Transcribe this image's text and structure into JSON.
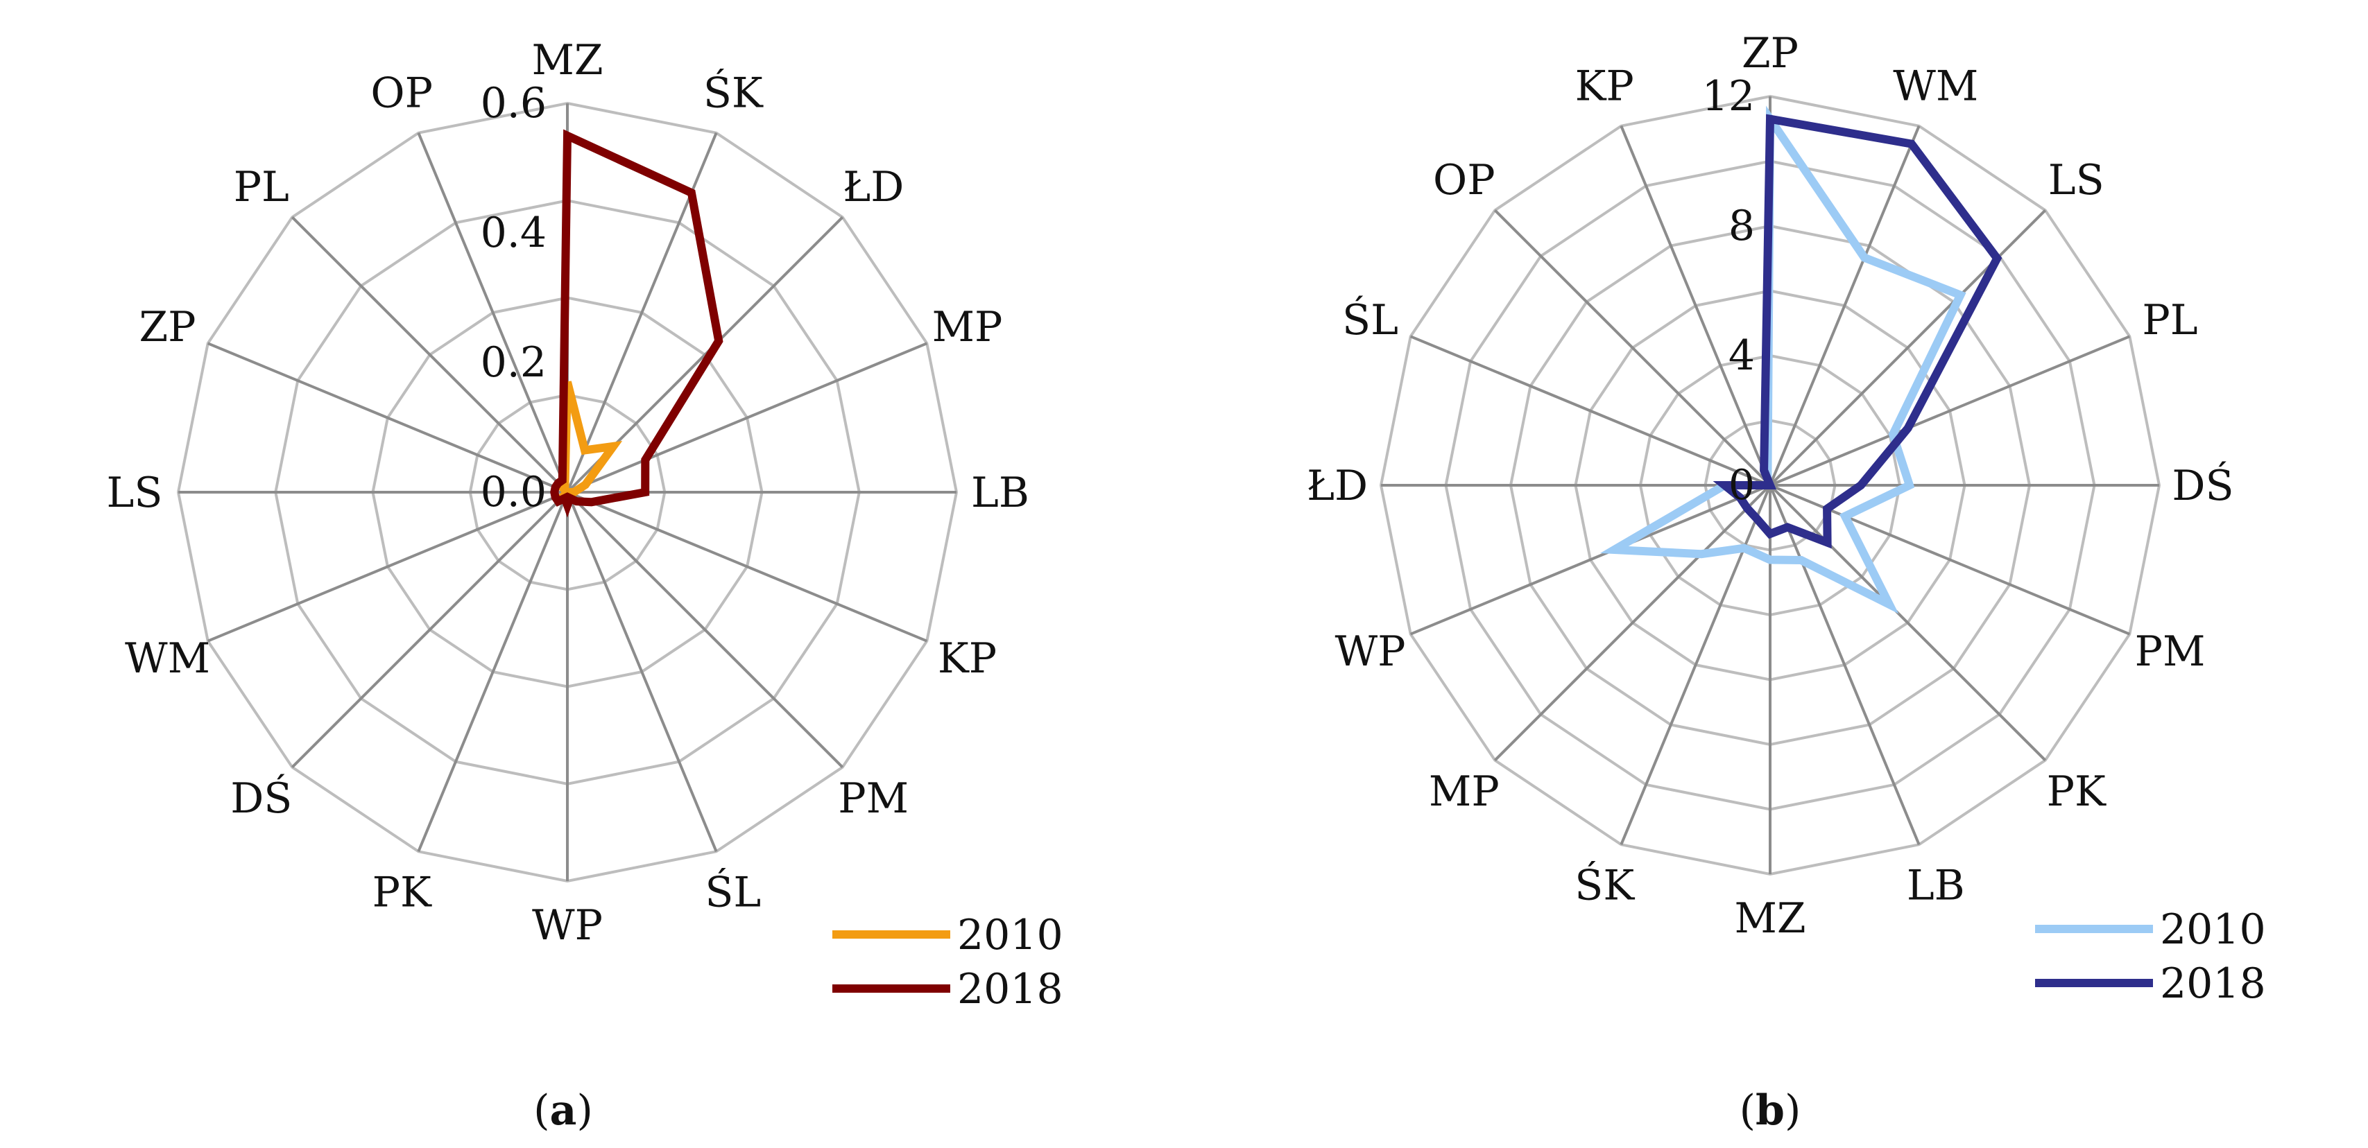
{
  "chart_data": [
    {
      "type": "radar",
      "panel_label": "a",
      "categories": [
        "MZ",
        "ŚK",
        "ŁD",
        "MP",
        "LB",
        "KP",
        "PM",
        "ŚL",
        "WP",
        "PK",
        "DŚ",
        "WM",
        "LS",
        "ZP",
        "PL",
        "OP"
      ],
      "ticks": [
        "0.0",
        "0.2",
        "0.4",
        "0.6"
      ],
      "rmax": 0.6,
      "rings": 4,
      "series": [
        {
          "name": "2010",
          "color": "#F39C12",
          "values": [
            0.17,
            0.07,
            0.1,
            0.03,
            0.01,
            0.0,
            0.0,
            0.0,
            0.01,
            0.01,
            0.01,
            0.0,
            0.0,
            0.0,
            0.01,
            0.01
          ]
        },
        {
          "name": "2018",
          "color": "#7F0000",
          "values": [
            0.55,
            0.5,
            0.33,
            0.13,
            0.12,
            0.04,
            0.02,
            0.01,
            0.02,
            0.01,
            0.02,
            0.02,
            0.02,
            0.02,
            0.02,
            0.02
          ]
        }
      ]
    },
    {
      "type": "radar",
      "panel_label": "b",
      "categories": [
        "ZP",
        "WM",
        "LS",
        "PL",
        "DŚ",
        "PM",
        "PK",
        "LB",
        "MZ",
        "ŚK",
        "MP",
        "WP",
        "ŁD",
        "ŚL",
        "OP",
        "KP"
      ],
      "ticks": [
        "0",
        "4",
        "8",
        "12"
      ],
      "rmax": 12,
      "rings": 6,
      "series": [
        {
          "name": "2010",
          "color": "#9CCBF5",
          "values": [
            11.3,
            7.6,
            8.3,
            4.1,
            4.3,
            2.5,
            5.2,
            2.5,
            2.3,
            2.1,
            3.0,
            5.2,
            1.4,
            0.0,
            0.0,
            0.2
          ]
        },
        {
          "name": "2018",
          "color": "#2E2E8C",
          "values": [
            11.3,
            11.4,
            9.9,
            4.6,
            2.8,
            1.9,
            2.5,
            1.4,
            1.5,
            1.1,
            1.0,
            1.0,
            1.4,
            0.0,
            0.0,
            0.5
          ]
        }
      ]
    }
  ]
}
